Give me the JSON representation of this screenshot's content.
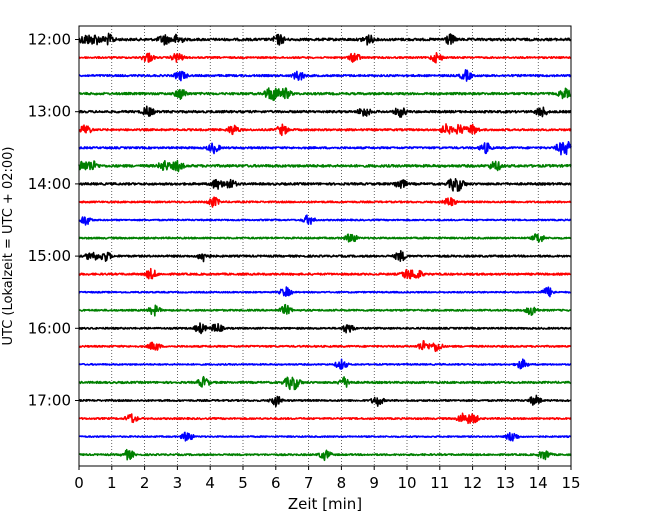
{
  "chart_data": {
    "type": "line",
    "xlabel": "Zeit  [min]",
    "ylabel": "UTC (Lokalzeit = UTC + 02:00)",
    "xlim": [
      0,
      15
    ],
    "x_ticks": [
      0,
      1,
      2,
      3,
      4,
      5,
      6,
      7,
      8,
      9,
      10,
      11,
      12,
      13,
      14,
      15
    ],
    "grid": "vertical dotted",
    "rows_per_hour": 4,
    "minutes_per_row": 15,
    "start_row_time": "12:00",
    "y_tick_labels": [
      "12:00",
      "13:00",
      "14:00",
      "15:00",
      "16:00",
      "17:00"
    ],
    "series": [
      {
        "start": "12:00",
        "color": "#000000",
        "amplitude": 0.9,
        "bursts": [
          0.2,
          0.5,
          0.9,
          2.6,
          3.0,
          6.1,
          8.8,
          11.3
        ]
      },
      {
        "start": "12:15",
        "color": "#ff0000",
        "amplitude": 0.6,
        "bursts": [
          2.1,
          3.0,
          8.4,
          10.9
        ]
      },
      {
        "start": "12:30",
        "color": "#0000ff",
        "amplitude": 0.7,
        "bursts": [
          6.7,
          3.1,
          11.8
        ]
      },
      {
        "start": "12:45",
        "color": "#008000",
        "amplitude": 0.8,
        "bursts": [
          3.1,
          5.8,
          6.0,
          6.3,
          14.8
        ]
      },
      {
        "start": "13:00",
        "color": "#000000",
        "amplitude": 0.8,
        "bursts": [
          2.1,
          8.7,
          9.8,
          14.1
        ]
      },
      {
        "start": "13:15",
        "color": "#ff0000",
        "amplitude": 0.7,
        "bursts": [
          0.2,
          4.7,
          6.2,
          11.2,
          11.6,
          12.0
        ]
      },
      {
        "start": "13:30",
        "color": "#0000ff",
        "amplitude": 0.7,
        "bursts": [
          4.1,
          12.4,
          14.7,
          14.9
        ]
      },
      {
        "start": "13:45",
        "color": "#008000",
        "amplitude": 0.9,
        "bursts": [
          0.1,
          0.4,
          2.6,
          3.0,
          12.7
        ]
      },
      {
        "start": "14:00",
        "color": "#000000",
        "amplitude": 0.8,
        "bursts": [
          4.2,
          4.6,
          9.8,
          11.4,
          11.6
        ]
      },
      {
        "start": "14:15",
        "color": "#ff0000",
        "amplitude": 0.6,
        "bursts": [
          4.1,
          11.3
        ]
      },
      {
        "start": "14:30",
        "color": "#0000ff",
        "amplitude": 0.5,
        "bursts": [
          0.2,
          7.0
        ]
      },
      {
        "start": "14:45",
        "color": "#008000",
        "amplitude": 0.6,
        "bursts": [
          8.3,
          14.0
        ]
      },
      {
        "start": "15:00",
        "color": "#000000",
        "amplitude": 0.7,
        "bursts": [
          0.4,
          0.8,
          3.8,
          9.8
        ]
      },
      {
        "start": "15:15",
        "color": "#ff0000",
        "amplitude": 0.7,
        "bursts": [
          2.2,
          10.0,
          10.3
        ]
      },
      {
        "start": "15:30",
        "color": "#0000ff",
        "amplitude": 0.5,
        "bursts": [
          6.3,
          14.3
        ]
      },
      {
        "start": "15:45",
        "color": "#008000",
        "amplitude": 0.6,
        "bursts": [
          2.3,
          6.3,
          13.8
        ]
      },
      {
        "start": "16:00",
        "color": "#000000",
        "amplitude": 0.6,
        "bursts": [
          3.7,
          4.2,
          8.2
        ]
      },
      {
        "start": "16:15",
        "color": "#ff0000",
        "amplitude": 0.6,
        "bursts": [
          2.3,
          10.5,
          10.9
        ]
      },
      {
        "start": "16:30",
        "color": "#0000ff",
        "amplitude": 0.5,
        "bursts": [
          8.0,
          13.5
        ]
      },
      {
        "start": "16:45",
        "color": "#008000",
        "amplitude": 0.7,
        "bursts": [
          3.8,
          6.4,
          6.6,
          8.1
        ]
      },
      {
        "start": "17:00",
        "color": "#000000",
        "amplitude": 0.6,
        "bursts": [
          6.0,
          9.1,
          13.9
        ]
      },
      {
        "start": "17:15",
        "color": "#ff0000",
        "amplitude": 0.6,
        "bursts": [
          1.6,
          11.7,
          12.0
        ]
      },
      {
        "start": "17:30",
        "color": "#0000ff",
        "amplitude": 0.5,
        "bursts": [
          3.3,
          13.2
        ]
      },
      {
        "start": "17:45",
        "color": "#008000",
        "amplitude": 0.6,
        "bursts": [
          1.5,
          7.5,
          14.2
        ]
      }
    ]
  }
}
